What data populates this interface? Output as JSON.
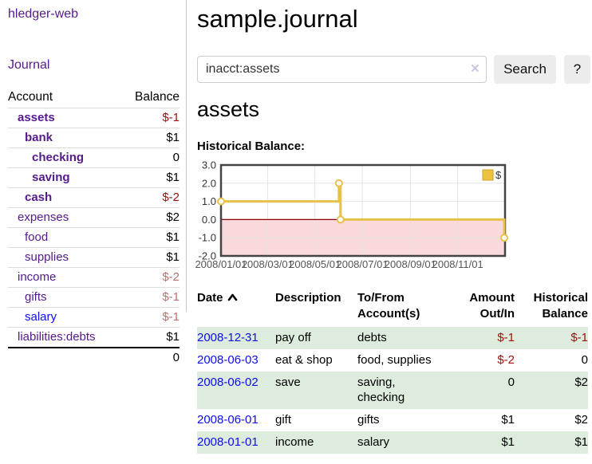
{
  "app": {
    "brand": "hledger-web",
    "nav_journal": "Journal"
  },
  "sidebar": {
    "header": {
      "account": "Account",
      "balance": "Balance"
    },
    "accounts": [
      {
        "name": "assets",
        "balance": "$-1",
        "level": 1,
        "bold": true,
        "neg": "strong"
      },
      {
        "name": "bank",
        "balance": "$1",
        "level": 2,
        "bold": true,
        "neg": "none"
      },
      {
        "name": "checking",
        "balance": "0",
        "level": 3,
        "bold": true,
        "neg": "none"
      },
      {
        "name": "saving",
        "balance": "$1",
        "level": 3,
        "bold": true,
        "neg": "none"
      },
      {
        "name": "cash",
        "balance": "$-2",
        "level": 2,
        "bold": true,
        "neg": "strong"
      },
      {
        "name": "expenses",
        "balance": "$2",
        "level": 1,
        "bold": false,
        "neg": "none"
      },
      {
        "name": "food",
        "balance": "$1",
        "level": 2,
        "bold": false,
        "neg": "none"
      },
      {
        "name": "supplies",
        "balance": "$1",
        "level": 2,
        "bold": false,
        "neg": "none"
      },
      {
        "name": "income",
        "balance": "$-2",
        "level": 1,
        "bold": false,
        "neg": "soft"
      },
      {
        "name": "gifts",
        "balance": "$-1",
        "level": 2,
        "bold": false,
        "neg": "soft"
      },
      {
        "name": "salary",
        "balance": "$-1",
        "level": 2,
        "bold": false,
        "neg": "soft",
        "unvisited": true
      },
      {
        "name": "liabilities:debts",
        "balance": "$1",
        "level": 1,
        "bold": false,
        "neg": "none"
      }
    ],
    "total": "0"
  },
  "header": {
    "title": "sample.journal"
  },
  "search": {
    "value": "inacct:assets",
    "clear_glyph": "×",
    "button_label": "Search",
    "help_label": "?"
  },
  "account_page": {
    "title": "assets",
    "chart_label": "Historical Balance:"
  },
  "chart_data": {
    "type": "line",
    "step": true,
    "title": "Historical Balance",
    "legend": {
      "label": "$",
      "position": "top-right"
    },
    "ylim": [
      -2,
      3
    ],
    "y_ticks": [
      "3.0",
      "2.0",
      "1.0",
      "0.0",
      "-1.0",
      "-2.0"
    ],
    "x_ticks": [
      "2008/01/01",
      "2008/03/01",
      "2008/05/01",
      "2008/07/01",
      "2008/09/01",
      "2008/11/01"
    ],
    "x_range": [
      "2008-01-01",
      "2008-12-31"
    ],
    "points": [
      {
        "date": "2008-01-01",
        "value": 1
      },
      {
        "date": "2008-06-01",
        "value": 2
      },
      {
        "date": "2008-06-03",
        "value": 0
      },
      {
        "date": "2008-12-31",
        "value": -1
      }
    ],
    "colors": {
      "line": "#e8c14a",
      "marker_fill": "#ffffff",
      "negative_region": "#f9d9d9",
      "zero_line": "#8b0000",
      "grid": "#e4e4e4",
      "border": "#444444",
      "legend_fill": "#edc240",
      "legend_border": "#c9a22a"
    }
  },
  "register": {
    "columns": [
      {
        "label": "Date",
        "sorted": true
      },
      {
        "label": "Description",
        "sorted": false
      },
      {
        "label": "To/From\nAccount(s)",
        "sorted": false
      },
      {
        "label": "Amount\nOut/In",
        "sorted": false,
        "align": "right"
      },
      {
        "label": "Historical\nBalance",
        "sorted": false,
        "align": "right"
      }
    ],
    "rows": [
      {
        "date": "2008-12-31",
        "description": "pay off",
        "tofrom": "debts",
        "amount": "$-1",
        "balance": "$-1"
      },
      {
        "date": "2008-06-03",
        "description": "eat & shop",
        "tofrom": "food, supplies",
        "amount": "$-2",
        "balance": "0"
      },
      {
        "date": "2008-06-02",
        "description": "save",
        "tofrom": "saving,\nchecking",
        "amount": "0",
        "balance": "$2"
      },
      {
        "date": "2008-06-01",
        "description": "gift",
        "tofrom": "gifts",
        "amount": "$1",
        "balance": "$2"
      },
      {
        "date": "2008-01-01",
        "description": "income",
        "tofrom": "salary",
        "amount": "$1",
        "balance": "$1"
      }
    ]
  },
  "colors": {
    "link_visited_purple": "#551a8b",
    "link_blue": "#0e0eee",
    "negative_strong": "#a01010",
    "negative_soft": "#b96f6f",
    "row_stripe_green": "#ddecdd",
    "button_bg": "#ececec"
  }
}
